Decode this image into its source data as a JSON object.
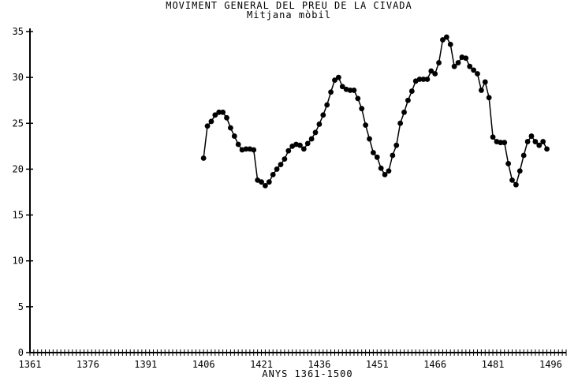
{
  "chart_data": {
    "type": "line",
    "title": "MOVIMENT GENERAL DEL PREU DE LA CIVADA",
    "subtitle": "Mitjana mòbil",
    "xlabel": "ANYS 1361-1500",
    "ylabel": "",
    "xlim": [
      1361,
      1500
    ],
    "ylim": [
      0,
      35
    ],
    "x_ticks": [
      "1361",
      "1376",
      "1391",
      "1406",
      "1421",
      "1436",
      "1451",
      "1466",
      "1481",
      "1496"
    ],
    "y_ticks": [
      "0",
      "5",
      "10",
      "15",
      "20",
      "25",
      "30",
      "35"
    ],
    "grid": false,
    "series": [
      {
        "points": [
          [
            1406,
            21.2
          ],
          [
            1407,
            24.7
          ],
          [
            1408,
            25.2
          ],
          [
            1409,
            25.9
          ],
          [
            1410,
            26.2
          ],
          [
            1411,
            26.2
          ],
          [
            1412,
            25.6
          ],
          [
            1413,
            24.5
          ],
          [
            1414,
            23.6
          ],
          [
            1415,
            22.7
          ],
          [
            1416,
            22.1
          ],
          [
            1417,
            22.2
          ],
          [
            1418,
            22.2
          ],
          [
            1419,
            22.1
          ],
          [
            1420,
            18.8
          ],
          [
            1421,
            18.6
          ],
          [
            1422,
            18.2
          ],
          [
            1423,
            18.6
          ],
          [
            1424,
            19.4
          ],
          [
            1425,
            20.0
          ],
          [
            1426,
            20.5
          ],
          [
            1427,
            21.1
          ],
          [
            1428,
            22.0
          ],
          [
            1429,
            22.5
          ],
          [
            1430,
            22.7
          ],
          [
            1431,
            22.6
          ],
          [
            1432,
            22.2
          ],
          [
            1433,
            22.8
          ],
          [
            1434,
            23.3
          ],
          [
            1435,
            24.0
          ],
          [
            1436,
            24.9
          ],
          [
            1437,
            25.9
          ],
          [
            1438,
            27.0
          ],
          [
            1439,
            28.4
          ],
          [
            1440,
            29.7
          ],
          [
            1441,
            30.0
          ],
          [
            1442,
            29.0
          ],
          [
            1443,
            28.7
          ],
          [
            1444,
            28.6
          ],
          [
            1445,
            28.6
          ],
          [
            1446,
            27.7
          ],
          [
            1447,
            26.6
          ],
          [
            1448,
            24.8
          ],
          [
            1449,
            23.3
          ],
          [
            1450,
            21.8
          ],
          [
            1451,
            21.3
          ],
          [
            1452,
            20.1
          ],
          [
            1453,
            19.4
          ],
          [
            1454,
            19.8
          ],
          [
            1455,
            21.5
          ],
          [
            1456,
            22.6
          ],
          [
            1457,
            25.0
          ],
          [
            1458,
            26.2
          ],
          [
            1459,
            27.5
          ],
          [
            1460,
            28.5
          ],
          [
            1461,
            29.6
          ],
          [
            1462,
            29.8
          ],
          [
            1463,
            29.8
          ],
          [
            1464,
            29.8
          ],
          [
            1465,
            30.7
          ],
          [
            1466,
            30.4
          ],
          [
            1467,
            31.6
          ],
          [
            1468,
            34.1
          ],
          [
            1469,
            34.4
          ],
          [
            1470,
            33.6
          ],
          [
            1471,
            31.2
          ],
          [
            1472,
            31.6
          ],
          [
            1473,
            32.2
          ],
          [
            1474,
            32.1
          ],
          [
            1475,
            31.2
          ],
          [
            1476,
            30.8
          ],
          [
            1477,
            30.4
          ],
          [
            1478,
            28.6
          ],
          [
            1479,
            29.5
          ],
          [
            1480,
            27.8
          ],
          [
            1481,
            23.5
          ],
          [
            1482,
            23.0
          ],
          [
            1483,
            22.9
          ],
          [
            1484,
            22.9
          ],
          [
            1485,
            20.6
          ],
          [
            1486,
            18.8
          ],
          [
            1487,
            18.3
          ],
          [
            1488,
            19.8
          ],
          [
            1489,
            21.5
          ],
          [
            1490,
            23.0
          ],
          [
            1491,
            23.6
          ],
          [
            1492,
            23.0
          ],
          [
            1493,
            22.6
          ],
          [
            1494,
            23.0
          ],
          [
            1495,
            22.2
          ]
        ]
      }
    ]
  }
}
